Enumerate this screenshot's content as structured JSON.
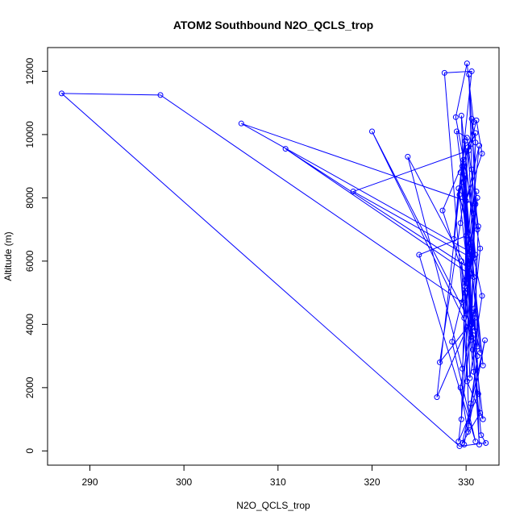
{
  "chart_data": {
    "type": "line",
    "title": "ATOM2 Southbound N2O_QCLS_trop",
    "xlabel": "N2O_QCLS_trop",
    "ylabel": "Altitude (m)",
    "xlim": [
      285.5,
      333.5
    ],
    "ylim": [
      -450,
      12750
    ],
    "x_ticks": [
      290,
      300,
      310,
      320,
      330
    ],
    "y_ticks": [
      0,
      2000,
      4000,
      6000,
      8000,
      10000,
      12000
    ],
    "grid": false,
    "legend": "none",
    "color": "#0000FF",
    "marker": "open-circle",
    "series": [
      {
        "x": [
          329.8,
          330.5,
          331.2,
          330.2,
          329.4,
          330.9,
          331.5,
          329.6,
          332.0,
          330.3,
          329.9,
          330.8,
          331.3,
          329.2,
          330.6,
          331.8,
          330.1,
          329.5,
          330.7,
          331.6,
          332.1,
          329.3,
          287.0,
          297.5,
          329.6,
          330.4,
          306.1,
          331.0,
          330.5,
          329.7,
          330.8,
          310.8,
          330.2,
          331.1,
          329.5,
          330.0,
          325.0,
          331.0,
          328.5,
          329.9,
          330.6,
          318.0,
          330.3,
          329.4,
          327.2,
          330.9,
          331.4,
          329.7,
          330.2,
          331.5,
          330.0,
          330.8,
          329.6,
          323.8,
          330.4,
          331.2,
          329.8,
          327.7,
          330.6,
          328.7,
          329.2,
          330.9,
          331.3,
          330.1,
          329.0,
          330.5,
          331.8,
          329.4,
          330.2,
          330.7,
          326.9,
          329.9,
          330.6,
          331.0,
          327.5,
          330.2,
          329.9,
          330.7,
          320.0,
          331.2,
          331.0,
          329.5,
          330.4,
          331.7,
          329.3,
          330.8,
          330.1,
          328.9,
          331.5,
          330.5,
          329.6,
          330.2,
          330.9,
          330.6,
          330.3,
          331.2,
          330.6,
          331.0,
          329.9,
          331.4,
          330.0,
          331.7,
          331.1,
          330.5
        ],
        "y": [
          200,
          1500,
          3000,
          600,
          2000,
          4500,
          1200,
          250,
          3500,
          800,
          5000,
          2500,
          1800,
          300,
          4000,
          1000,
          2200,
          6000,
          3200,
          500,
          250,
          150,
          11300,
          11250,
          4700,
          6300,
          10350,
          7800,
          4000,
          9200,
          5500,
          9550,
          5800,
          8200,
          1000,
          6800,
          6200,
          300,
          3450,
          5200,
          6100,
          8200,
          9500,
          7200,
          2800,
          4200,
          200,
          8500,
          6900,
          3100,
          5300,
          7500,
          2600,
          9300,
          5600,
          8000,
          4200,
          11950,
          12000,
          6700,
          8300,
          3800,
          7100,
          9900,
          10100,
          6600,
          2700,
          8800,
          5900,
          4300,
          1700,
          9800,
          3600,
          10050,
          7600,
          5100,
          8700,
          3900,
          10100,
          3300,
          6200,
          10600,
          2300,
          4900,
          8100,
          10400,
          12250,
          10550,
          6400,
          3500,
          9000,
          9600,
          6100,
          8900,
          11900,
          7000,
          10500,
          9750,
          5400,
          9650,
          7900,
          9400,
          10450,
          9700
        ]
      }
    ]
  }
}
